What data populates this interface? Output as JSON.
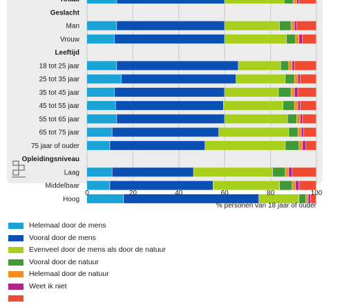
{
  "chart_data": {
    "type": "bar",
    "orientation": "horizontal",
    "stacked": true,
    "xlabel": "% personen van 18 jaar of ouder",
    "xlim": [
      0,
      100
    ],
    "xticks": [
      0,
      20,
      40,
      60,
      80,
      100
    ],
    "grid": true,
    "rows": [
      {
        "label": "Totaal",
        "kind": "group",
        "values": [
          13,
          47,
          26,
          4,
          1.5,
          1,
          7.5
        ]
      },
      {
        "label": "Geslacht",
        "kind": "header"
      },
      {
        "label": "Man",
        "kind": "category",
        "values": [
          13,
          47,
          24,
          5,
          1.5,
          1,
          8.5
        ]
      },
      {
        "label": "Vrouw",
        "kind": "category",
        "values": [
          12,
          48,
          27,
          4,
          1.5,
          1.5,
          6
        ]
      },
      {
        "label": "Leeftijd",
        "kind": "header"
      },
      {
        "label": "18 tot 25 jaar",
        "kind": "category",
        "values": [
          13,
          53,
          18.5,
          3.5,
          1.5,
          1,
          9.5
        ]
      },
      {
        "label": "25 tot 35 jaar",
        "kind": "category",
        "values": [
          15,
          50,
          21.5,
          4,
          1.5,
          1,
          7
        ]
      },
      {
        "label": "35 tot 45 jaar",
        "kind": "category",
        "values": [
          12,
          48,
          23.5,
          5.5,
          1.5,
          1.5,
          8
        ]
      },
      {
        "label": "45 tot 55 jaar",
        "kind": "category",
        "values": [
          12.5,
          47,
          26,
          5,
          1.5,
          1,
          7
        ]
      },
      {
        "label": "55 tot 65 jaar",
        "kind": "category",
        "values": [
          13,
          47,
          27.5,
          4,
          1.5,
          1,
          6
        ]
      },
      {
        "label": "65 tot 75 jaar",
        "kind": "category",
        "values": [
          11,
          46.5,
          30.5,
          4,
          1.5,
          1,
          5.5
        ]
      },
      {
        "label": "75 jaar of ouder",
        "kind": "category",
        "values": [
          10,
          41.5,
          35,
          6,
          1.5,
          1.5,
          4.5
        ]
      },
      {
        "label": "Opleidingsniveau",
        "kind": "header"
      },
      {
        "label": "Laag",
        "kind": "category",
        "values": [
          11,
          35.5,
          34.5,
          5.5,
          1.5,
          1.5,
          10.5
        ]
      },
      {
        "label": "Middelbaar",
        "kind": "category",
        "values": [
          10,
          45,
          29,
          5.5,
          1.5,
          1.5,
          7.5
        ]
      },
      {
        "label": "Hoog",
        "kind": "category",
        "values": [
          16,
          59,
          17.5,
          3,
          1,
          1,
          2.5
        ]
      }
    ],
    "series": [
      {
        "name": "Helemaal door de mens",
        "color": "#1aa3d6"
      },
      {
        "name": "Vooral door de mens",
        "color": "#0a4fb3"
      },
      {
        "name": "Evenveel door de mens als door de natuur",
        "color": "#a7cf1c"
      },
      {
        "name": "Vooral door de natuur",
        "color": "#3f9a36"
      },
      {
        "name": "Helemaal door de natuur",
        "color": "#f28c1e"
      },
      {
        "name": "Weet ik niet",
        "color": "#b1248c"
      },
      {
        "name": "",
        "color": "#ef4a32"
      }
    ]
  },
  "icons": {
    "logo": "cbs-logo-icon"
  }
}
